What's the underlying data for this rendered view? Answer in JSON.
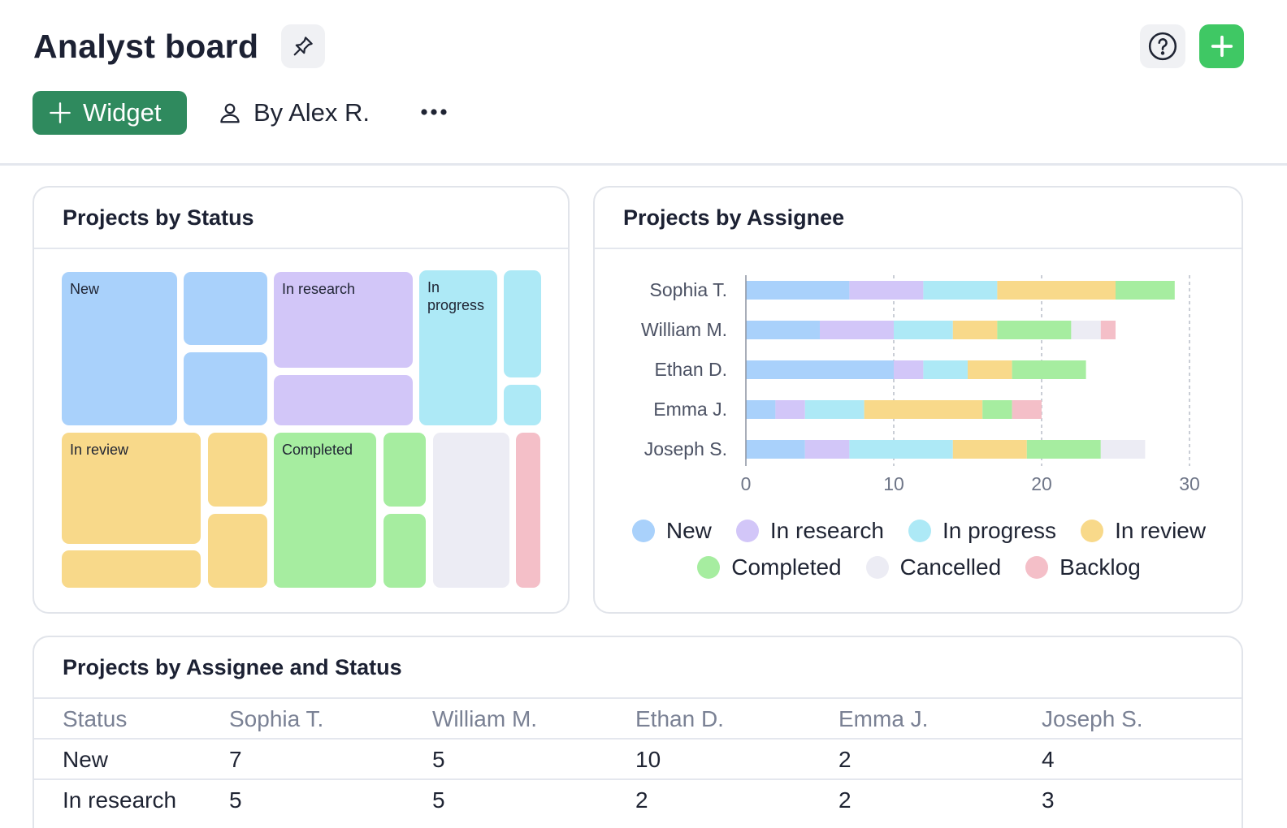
{
  "header": {
    "title": "Analyst board",
    "widget_label": "Widget",
    "author_label": "By Alex R.",
    "icons": [
      "pin-icon",
      "help-icon",
      "plus-icon",
      "user-icon",
      "more-icon"
    ]
  },
  "colors": {
    "new": "#a9d1fb",
    "in_research": "#d2c6f8",
    "in_progress": "#ade9f6",
    "in_review": "#f8d98a",
    "completed": "#a6eda0",
    "cancelled": "#ececf4",
    "backlog": "#f4bfc8",
    "accent_green": "#2f8a5e",
    "add_green": "#3fc864"
  },
  "treemap": {
    "title": "Projects by Status",
    "labels": {
      "new": "New",
      "in_research": "In research",
      "in_progress": "In progress",
      "in_review": "In review",
      "completed": "Completed"
    }
  },
  "assignee_chart": {
    "title": "Projects by Assignee"
  },
  "chart_data": {
    "type": "bar",
    "orientation": "horizontal",
    "stacked": true,
    "title": "Projects by Assignee",
    "categories": [
      "Sophia T.",
      "William M.",
      "Ethan D.",
      "Emma J.",
      "Joseph S."
    ],
    "series": [
      {
        "name": "New",
        "values": [
          7,
          5,
          10,
          2,
          4
        ]
      },
      {
        "name": "In research",
        "values": [
          5,
          5,
          2,
          2,
          3
        ]
      },
      {
        "name": "In progress",
        "values": [
          5,
          4,
          3,
          4,
          7
        ]
      },
      {
        "name": "In review",
        "values": [
          8,
          3,
          3,
          8,
          5
        ]
      },
      {
        "name": "Completed",
        "values": [
          4,
          5,
          5,
          2,
          5
        ]
      },
      {
        "name": "Cancelled",
        "values": [
          0,
          2,
          0,
          0,
          3
        ]
      },
      {
        "name": "Backlog",
        "values": [
          0,
          1,
          0,
          2,
          0
        ]
      }
    ],
    "xlim": [
      0,
      30
    ],
    "xticks": [
      "0",
      "10",
      "20",
      "30"
    ],
    "grid": "vertical dashed",
    "legend": "bottom"
  },
  "table": {
    "title": "Projects by Assignee and Status",
    "columns": [
      "Status",
      "Sophia T.",
      "William M.",
      "Ethan D.",
      "Emma J.",
      "Joseph S."
    ],
    "rows": [
      [
        "New",
        "7",
        "5",
        "10",
        "2",
        "4"
      ],
      [
        "In research",
        "5",
        "5",
        "2",
        "2",
        "3"
      ]
    ]
  }
}
